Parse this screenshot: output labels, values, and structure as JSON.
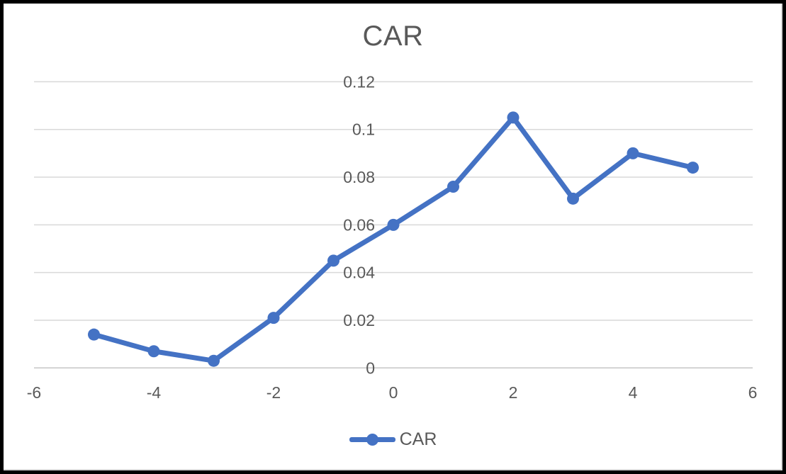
{
  "chart_data": {
    "type": "line",
    "title": "CAR",
    "x": [
      -5,
      -4,
      -3,
      -2,
      -1,
      0,
      1,
      2,
      3,
      4,
      5
    ],
    "series": [
      {
        "name": "CAR",
        "values": [
          0.014,
          0.007,
          0.003,
          0.021,
          0.045,
          0.06,
          0.076,
          0.105,
          0.071,
          0.09,
          0.084
        ]
      }
    ],
    "xlabel": "",
    "ylabel": "",
    "xlim": [
      -6,
      6
    ],
    "ylim": [
      0,
      0.12
    ],
    "x_tick_labels": [
      "-6",
      "-4",
      "-2",
      "0",
      "2",
      "4",
      "6"
    ],
    "y_tick_labels": [
      "0",
      "0.02",
      "0.04",
      "0.06",
      "0.08",
      "0.1",
      "0.12"
    ],
    "grid": "horizontal-only",
    "legend": {
      "position": "bottom",
      "entries": [
        "CAR"
      ]
    },
    "colors": {
      "series": "#4472C4",
      "gridline": "#D9D9D9",
      "axis_line": "#C6C6C6",
      "text": "#595959",
      "background": "#FFFFFF",
      "frame": "#000000"
    }
  }
}
